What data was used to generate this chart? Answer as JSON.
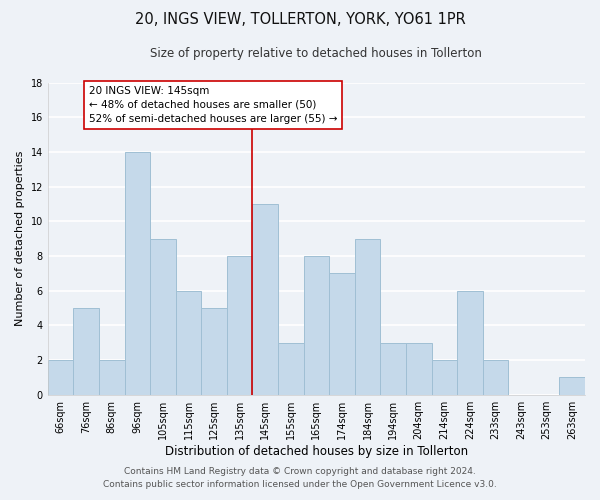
{
  "title": "20, INGS VIEW, TOLLERTON, YORK, YO61 1PR",
  "subtitle": "Size of property relative to detached houses in Tollerton",
  "xlabel": "Distribution of detached houses by size in Tollerton",
  "ylabel": "Number of detached properties",
  "bar_labels": [
    "66sqm",
    "76sqm",
    "86sqm",
    "96sqm",
    "105sqm",
    "115sqm",
    "125sqm",
    "135sqm",
    "145sqm",
    "155sqm",
    "165sqm",
    "174sqm",
    "184sqm",
    "194sqm",
    "204sqm",
    "214sqm",
    "224sqm",
    "233sqm",
    "243sqm",
    "253sqm",
    "263sqm"
  ],
  "bar_values": [
    2,
    5,
    2,
    14,
    9,
    6,
    5,
    8,
    11,
    3,
    8,
    7,
    9,
    3,
    3,
    2,
    6,
    2,
    0,
    0,
    1
  ],
  "bar_color": "#c5d9ea",
  "bar_edge_color": "#a0bfd4",
  "reference_line_color": "#cc0000",
  "annotation_title": "20 INGS VIEW: 145sqm",
  "annotation_line1": "← 48% of detached houses are smaller (50)",
  "annotation_line2": "52% of semi-detached houses are larger (55) →",
  "annotation_box_facecolor": "#ffffff",
  "annotation_box_edgecolor": "#cc0000",
  "ylim": [
    0,
    18
  ],
  "yticks": [
    0,
    2,
    4,
    6,
    8,
    10,
    12,
    14,
    16,
    18
  ],
  "footer1": "Contains HM Land Registry data © Crown copyright and database right 2024.",
  "footer2": "Contains public sector information licensed under the Open Government Licence v3.0.",
  "background_color": "#eef2f7",
  "grid_color": "#ffffff",
  "title_fontsize": 10.5,
  "subtitle_fontsize": 8.5,
  "xlabel_fontsize": 8.5,
  "ylabel_fontsize": 8,
  "tick_fontsize": 7,
  "annotation_title_fontsize": 8,
  "annotation_body_fontsize": 7.5,
  "footer_fontsize": 6.5
}
